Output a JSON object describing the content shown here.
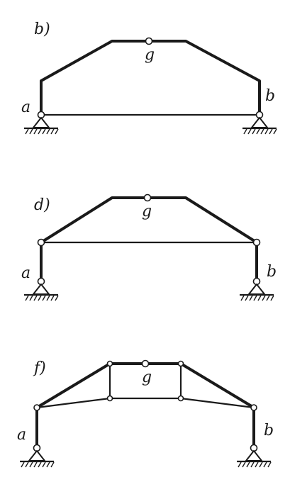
{
  "figures": [
    {
      "id": "b",
      "title": "b)",
      "labels": {
        "left": "a",
        "right": "b",
        "crown": "g"
      }
    },
    {
      "id": "d",
      "title": "d)",
      "labels": {
        "left": "a",
        "right": "b",
        "crown": "g"
      }
    },
    {
      "id": "f",
      "title": "f)",
      "labels": {
        "left": "a",
        "right": "b",
        "crown": "g"
      }
    }
  ]
}
